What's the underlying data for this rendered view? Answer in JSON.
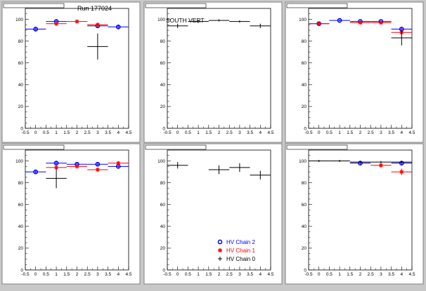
{
  "figure": {
    "run_label": "Run 177024",
    "south_label": "SOUTH VERT"
  },
  "legend": {
    "entries": [
      {
        "label": "HV Chain 2",
        "marker": "circle",
        "color": "#0000ff"
      },
      {
        "label": "HV Chain 1",
        "marker": "star",
        "color": "#ff0000"
      },
      {
        "label": "HV Chain 0",
        "marker": "plus",
        "color": "#000000"
      }
    ]
  },
  "colors": {
    "chain2": "#0000ff",
    "chain1": "#ff0000",
    "chain0": "#000000",
    "pad_bg": "#ffffff",
    "canvas_bg": "#c8c8c8"
  },
  "chart_data": [
    {
      "type": "scatter",
      "title": "",
      "xlim": [
        -0.5,
        4.5
      ],
      "ylim": [
        0,
        110
      ],
      "xticks": [
        "-0.5",
        "0",
        "0.5",
        "1",
        "1.5",
        "2",
        "2.5",
        "3",
        "3.5",
        "4",
        "4.5"
      ],
      "yticks": [
        "0",
        "20",
        "40",
        "60",
        "80",
        "100"
      ],
      "series": [
        {
          "key": "chain2",
          "points": [
            {
              "x": 0,
              "y": 91,
              "err": 2
            },
            {
              "x": 1,
              "y": 98,
              "err": 1.5
            },
            {
              "x": 3,
              "y": 94,
              "err": 2
            },
            {
              "x": 4,
              "y": 93,
              "err": 2
            }
          ]
        },
        {
          "key": "chain1",
          "points": [
            {
              "x": 1,
              "y": 96,
              "err": 2
            },
            {
              "x": 2,
              "y": 98,
              "err": 1.5
            },
            {
              "x": 3,
              "y": 95,
              "err": 2
            }
          ]
        },
        {
          "key": "chain0",
          "points": [
            {
              "x": 3,
              "y": 75,
              "err": 12
            }
          ]
        }
      ]
    },
    {
      "type": "scatter",
      "title": "",
      "xlim": [
        -0.5,
        4.5
      ],
      "ylim": [
        0,
        110
      ],
      "xticks": [
        "-0.5",
        "0",
        "0.5",
        "1",
        "1.5",
        "2",
        "2.5",
        "3",
        "3.5",
        "4",
        "4.5"
      ],
      "yticks": [
        "0",
        "20",
        "40",
        "60",
        "80",
        "100"
      ],
      "series": [
        {
          "key": "chain0",
          "points": [
            {
              "x": 0,
              "y": 94,
              "err": 2
            },
            {
              "x": 1,
              "y": 98,
              "err": 1.5
            },
            {
              "x": 2,
              "y": 99,
              "err": 1
            },
            {
              "x": 3,
              "y": 98,
              "err": 1
            },
            {
              "x": 4,
              "y": 94,
              "err": 2
            }
          ]
        }
      ]
    },
    {
      "type": "scatter",
      "title": "",
      "xlim": [
        -0.5,
        4.5
      ],
      "ylim": [
        0,
        110
      ],
      "xticks": [
        "-0.5",
        "0",
        "0.5",
        "1",
        "1.5",
        "2",
        "2.5",
        "3",
        "3.5",
        "4",
        "4.5"
      ],
      "yticks": [
        "0",
        "20",
        "40",
        "60",
        "80",
        "100"
      ],
      "series": [
        {
          "key": "chain2",
          "points": [
            {
              "x": 0,
              "y": 96,
              "err": 1.5
            },
            {
              "x": 1,
              "y": 99,
              "err": 1
            },
            {
              "x": 2,
              "y": 98,
              "err": 1
            },
            {
              "x": 3,
              "y": 98,
              "err": 1
            },
            {
              "x": 4,
              "y": 91,
              "err": 2
            }
          ]
        },
        {
          "key": "chain1",
          "points": [
            {
              "x": 0,
              "y": 96,
              "err": 1.5
            },
            {
              "x": 2,
              "y": 97,
              "err": 1.5
            },
            {
              "x": 3,
              "y": 97,
              "err": 1.5
            },
            {
              "x": 4,
              "y": 88,
              "err": 3
            }
          ]
        },
        {
          "key": "chain0",
          "points": [
            {
              "x": 4,
              "y": 83,
              "err": 7
            }
          ]
        }
      ]
    },
    {
      "type": "scatter",
      "title": "",
      "xlim": [
        -0.5,
        4.5
      ],
      "ylim": [
        0,
        110
      ],
      "xticks": [
        "-0.5",
        "0",
        "0.5",
        "1",
        "1.5",
        "2",
        "2.5",
        "3",
        "3.5",
        "4",
        "4.5"
      ],
      "yticks": [
        "0",
        "20",
        "40",
        "60",
        "80",
        "100"
      ],
      "series": [
        {
          "key": "chain2",
          "points": [
            {
              "x": 0,
              "y": 90,
              "err": 2
            },
            {
              "x": 1,
              "y": 98,
              "err": 1.5
            },
            {
              "x": 2,
              "y": 97,
              "err": 1.5
            },
            {
              "x": 3,
              "y": 97,
              "err": 1.5
            },
            {
              "x": 4,
              "y": 95,
              "err": 1.5
            }
          ]
        },
        {
          "key": "chain1",
          "points": [
            {
              "x": 1,
              "y": 94,
              "err": 2
            },
            {
              "x": 2,
              "y": 95,
              "err": 2
            },
            {
              "x": 3,
              "y": 92,
              "err": 2
            },
            {
              "x": 4,
              "y": 98,
              "err": 1.5
            }
          ]
        },
        {
          "key": "chain0",
          "points": [
            {
              "x": 1,
              "y": 84,
              "err": 9
            }
          ]
        }
      ]
    },
    {
      "type": "scatter",
      "title": "",
      "xlim": [
        -0.5,
        4.5
      ],
      "ylim": [
        0,
        110
      ],
      "xticks": [
        "-0.5",
        "0",
        "0.5",
        "1",
        "1.5",
        "2",
        "2.5",
        "3",
        "3.5",
        "4",
        "4.5"
      ],
      "yticks": [
        "0",
        "20",
        "40",
        "60",
        "80",
        "100"
      ],
      "series": [
        {
          "key": "chain0",
          "points": [
            {
              "x": 0,
              "y": 96,
              "err": 3
            },
            {
              "x": 2,
              "y": 92,
              "err": 4
            },
            {
              "x": 3,
              "y": 94,
              "err": 4
            },
            {
              "x": 4,
              "y": 87,
              "err": 4
            }
          ]
        }
      ]
    },
    {
      "type": "scatter",
      "title": "",
      "xlim": [
        -0.5,
        4.5
      ],
      "ylim": [
        0,
        110
      ],
      "xticks": [
        "-0.5",
        "0",
        "0.5",
        "1",
        "1.5",
        "2",
        "2.5",
        "3",
        "3.5",
        "4",
        "4.5"
      ],
      "yticks": [
        "0",
        "20",
        "40",
        "60",
        "80",
        "100"
      ],
      "series": [
        {
          "key": "chain2",
          "points": [
            {
              "x": 2,
              "y": 98,
              "err": 1.5
            },
            {
              "x": 4,
              "y": 98,
              "err": 1.5
            }
          ]
        },
        {
          "key": "chain1",
          "points": [
            {
              "x": 3,
              "y": 96,
              "err": 2
            },
            {
              "x": 4,
              "y": 90,
              "err": 3
            }
          ]
        },
        {
          "key": "chain0",
          "points": [
            {
              "x": 0,
              "y": 100,
              "err": 1
            },
            {
              "x": 1,
              "y": 100,
              "err": 1
            },
            {
              "x": 2,
              "y": 99,
              "err": 1
            },
            {
              "x": 3,
              "y": 99,
              "err": 1
            },
            {
              "x": 4,
              "y": 99,
              "err": 1
            }
          ]
        }
      ]
    }
  ]
}
